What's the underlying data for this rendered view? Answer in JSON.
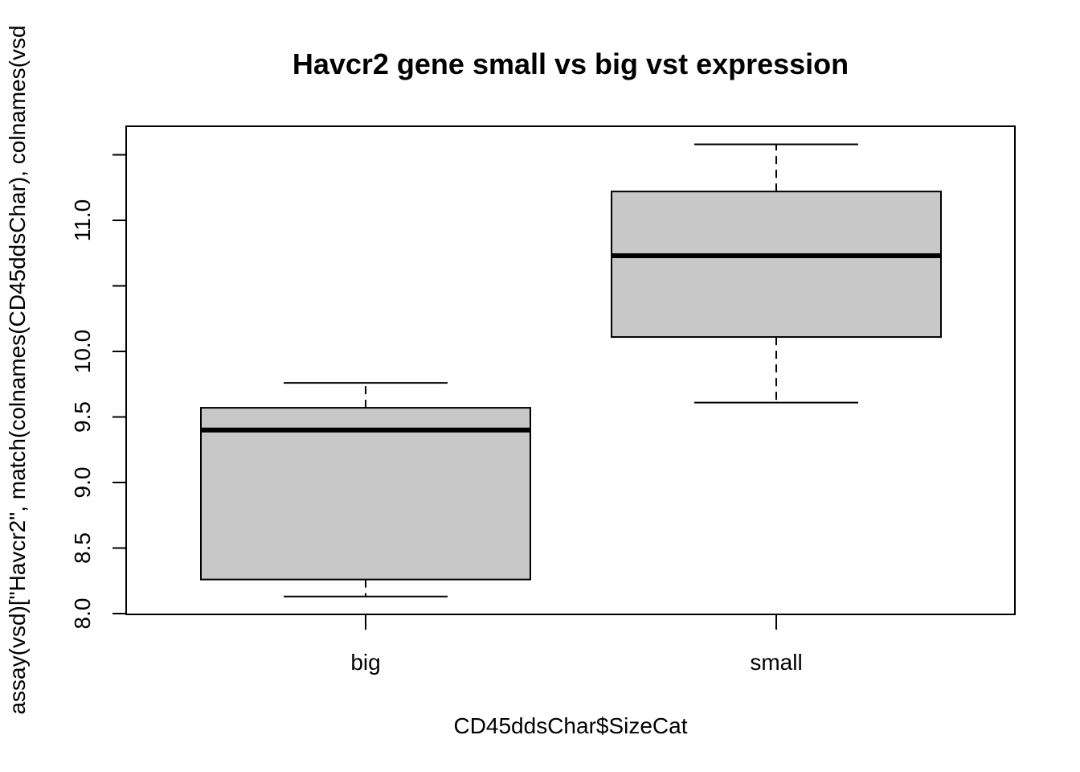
{
  "chart_data": {
    "type": "boxplot",
    "title": "Havcr2 gene small vs big vst expression",
    "xlabel": "CD45ddsChar$SizeCat",
    "ylabel": "assay(vsd)[\"Havcr2\", match(colnames(CD45ddsChar), colnames(vsd",
    "categories": [
      "big",
      "small"
    ],
    "boxes": [
      {
        "name": "big",
        "whisker_low": 8.13,
        "q1": 8.26,
        "median": 9.4,
        "q3": 9.57,
        "whisker_high": 9.76
      },
      {
        "name": "small",
        "whisker_low": 9.61,
        "q1": 10.11,
        "median": 10.73,
        "q3": 11.22,
        "whisker_high": 11.58
      }
    ],
    "ylim": [
      8.0,
      11.6
    ],
    "yticks": [
      8.0,
      8.5,
      9.0,
      9.5,
      10.0,
      10.5,
      11.0,
      11.5
    ],
    "yticklabels": [
      "8.0",
      "8.5",
      "9.0",
      "9.5",
      "10.0",
      "",
      "11.0",
      ""
    ],
    "box_fill": "#c8c8c8",
    "grid": false,
    "legend": "none"
  }
}
